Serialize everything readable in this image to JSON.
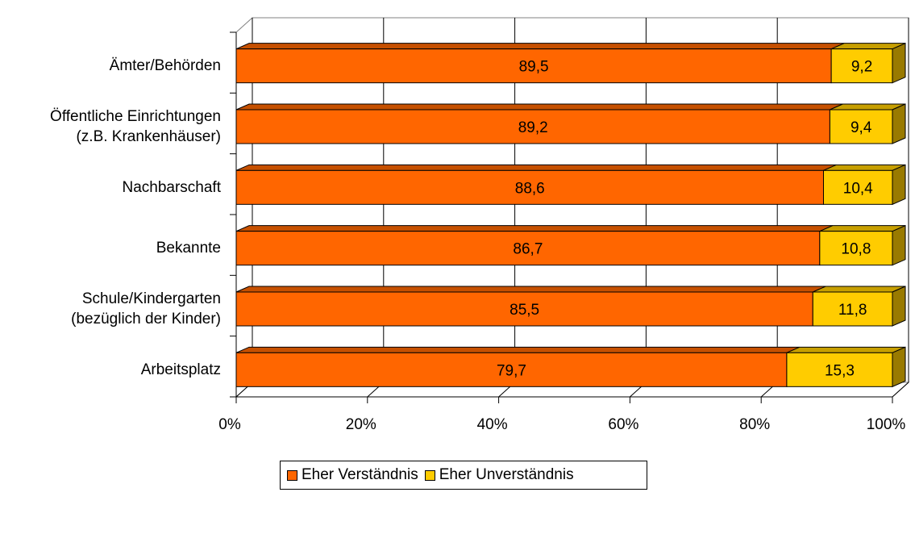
{
  "colors": {
    "series_front": [
      "#ff6600",
      "#ffcc00"
    ],
    "series_top": [
      "#c65000",
      "#c79f00"
    ],
    "series_side": [
      "#993d00",
      "#997a00"
    ]
  },
  "chart_data": {
    "type": "bar",
    "orientation": "horizontal",
    "stacked": true,
    "percent_stacked": true,
    "style_3d": true,
    "categories": [
      "Ämter/Behörden",
      "Öffentliche Einrichtungen\n(z.B. Krankenhäuser)",
      "Nachbarschaft",
      "Bekannte",
      "Schule/Kindergarten\n(bezüglich der Kinder)",
      "Arbeitsplatz"
    ],
    "series": [
      {
        "name": "Eher Verständnis",
        "values": [
          89.5,
          89.2,
          88.6,
          86.7,
          85.5,
          79.7
        ]
      },
      {
        "name": "Eher Unverständnis",
        "values": [
          9.2,
          9.4,
          10.4,
          10.8,
          11.8,
          15.3
        ]
      }
    ],
    "data_labels": [
      [
        "89,5",
        "89,2",
        "88,6",
        "86,7",
        "85,5",
        "79,7"
      ],
      [
        "9,2",
        "9,4",
        "10,4",
        "10,8",
        "11,8",
        "15,3"
      ]
    ],
    "x_ticks": [
      "0%",
      "20%",
      "40%",
      "60%",
      "80%",
      "100%"
    ],
    "xlim": [
      0,
      100
    ],
    "grid": true,
    "legend_position": "bottom"
  }
}
